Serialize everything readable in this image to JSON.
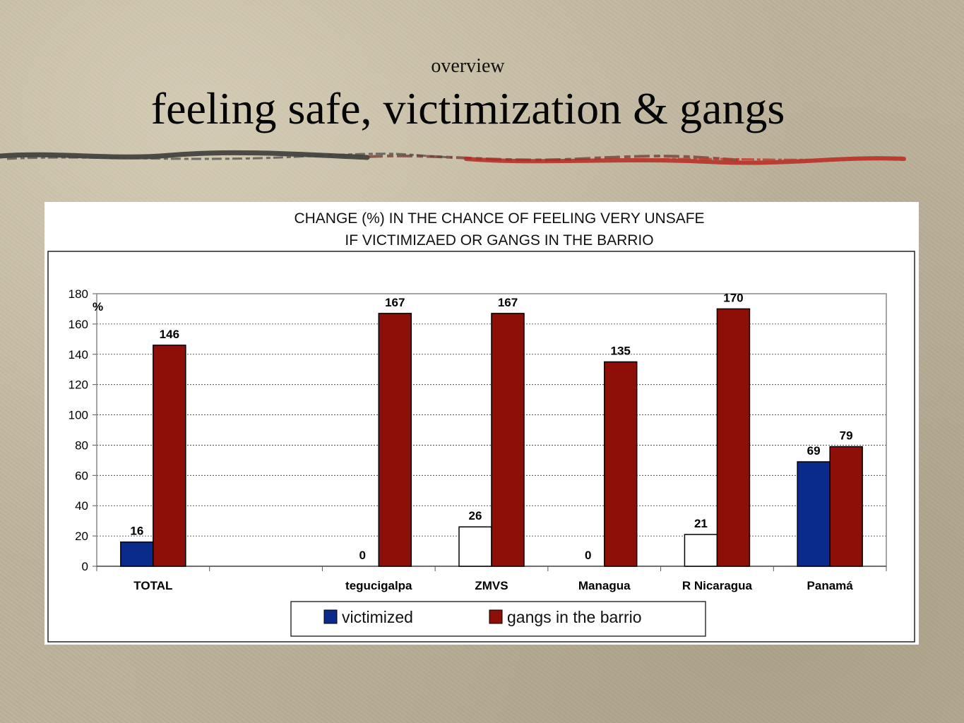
{
  "slide": {
    "subtitle": "overview",
    "title": "feeling safe, victimization & gangs"
  },
  "chart_data": {
    "type": "bar",
    "title_lines": [
      "CHANGE (%) IN THE CHANCE OF FEELING VERY UNSAFE",
      "IF VICTIMIZAED OR GANGS IN THE BARRIO"
    ],
    "ylabel": "%",
    "ylim": [
      0,
      180
    ],
    "yticks": [
      0,
      20,
      40,
      60,
      80,
      100,
      120,
      140,
      160,
      180
    ],
    "grid": true,
    "legend_position": "bottom",
    "categories": [
      "TOTAL",
      "",
      "tegucigalpa",
      "ZMVS",
      "Managua",
      "R Nicaragua",
      "Panamá"
    ],
    "series": [
      {
        "name": "victimized",
        "color": "#0a2a8c",
        "values": [
          16,
          null,
          0,
          26,
          0,
          21,
          69
        ],
        "bar_colors": [
          "#0a2a8c",
          null,
          "#ffffff",
          "#ffffff",
          "#ffffff",
          "#ffffff",
          "#0a2a8c"
        ],
        "labels": [
          "16",
          "",
          "0",
          "26",
          "0",
          "21",
          "69"
        ]
      },
      {
        "name": "gangs in the barrio",
        "color": "#8e0f08",
        "values": [
          146,
          null,
          167,
          167,
          135,
          170,
          79
        ],
        "labels": [
          "146",
          "",
          "167",
          "167",
          "135",
          "170",
          "79"
        ]
      }
    ]
  }
}
